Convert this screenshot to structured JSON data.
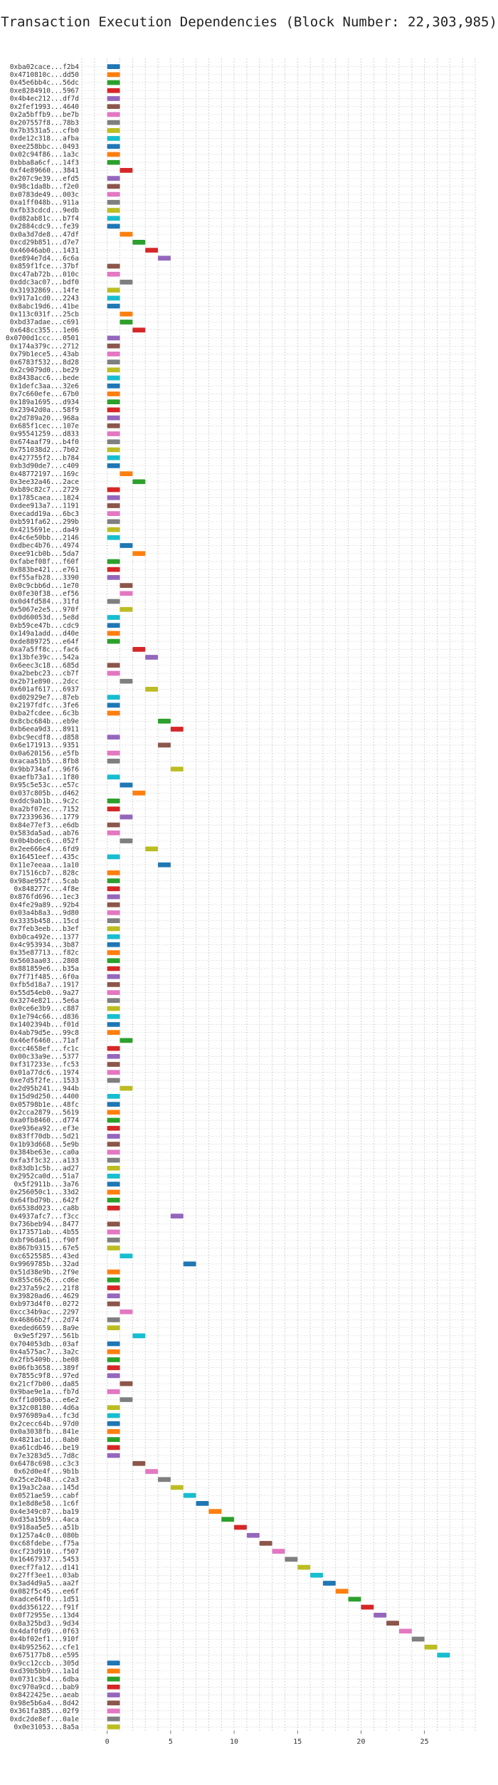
{
  "chart_data": {
    "type": "bar",
    "title": "Transaction Execution Dependencies (Block Number: 22,303,985)",
    "xlabel": "",
    "ylabel": "",
    "xlim": [
      -2,
      29
    ],
    "x_ticks": [
      0,
      5,
      10,
      15,
      20,
      25
    ],
    "grid": true,
    "legend": "none",
    "palette": [
      "#1f77b4",
      "#ff7f0e",
      "#2ca02c",
      "#d62728",
      "#9467bd",
      "#8c564b",
      "#e377c2",
      "#7f7f7f",
      "#bcbd22",
      "#17becf"
    ],
    "transactions": [
      {
        "label": "0xba02cace...f2b4",
        "start": 0
      },
      {
        "label": "0x4710810c...dd50",
        "start": 0
      },
      {
        "label": "0x45e6bb4c...56dc",
        "start": 0
      },
      {
        "label": "0xe8284910...5967",
        "start": 0
      },
      {
        "label": "0x4b4ec212...df7d",
        "start": 0
      },
      {
        "label": "0x2fef1993...4640",
        "start": 0
      },
      {
        "label": "0x2a5bffb9...be7b",
        "start": 0
      },
      {
        "label": "0x207557f8...78b3",
        "start": 0
      },
      {
        "label": "0x7b3531a5...cfb0",
        "start": 0
      },
      {
        "label": "0xde12c318...afba",
        "start": 0
      },
      {
        "label": "0xee258bbc...0493",
        "start": 0
      },
      {
        "label": "0x02c94f86...1a3c",
        "start": 0
      },
      {
        "label": "0xbba8a6cf...14f3",
        "start": 0
      },
      {
        "label": "0xf4e89660...3841",
        "start": 1
      },
      {
        "label": "0x207c9e39...efd5",
        "start": 0
      },
      {
        "label": "0x98c1da8b...f2e0",
        "start": 0
      },
      {
        "label": "0x0783de49...003c",
        "start": 0
      },
      {
        "label": "0xa1ff048b...911a",
        "start": 0
      },
      {
        "label": "0xfb33cdcd...9edb",
        "start": 0
      },
      {
        "label": "0xd82ab81c...b7f4",
        "start": 0
      },
      {
        "label": "0x2884cdc9...fe39",
        "start": 0
      },
      {
        "label": "0x0a3d7de8...47df",
        "start": 1
      },
      {
        "label": "0xcd29b851...d7e7",
        "start": 2
      },
      {
        "label": "0x46046ab0...1431",
        "start": 3
      },
      {
        "label": "0xe894e7d4...6c6a",
        "start": 4
      },
      {
        "label": "0x859f1fce...37bf",
        "start": 0
      },
      {
        "label": "0xc47ab72b...010c",
        "start": 0
      },
      {
        "label": "0xddc3ac07...bdf0",
        "start": 1
      },
      {
        "label": "0x31932869...14fe",
        "start": 0
      },
      {
        "label": "0x917a1cd0...2243",
        "start": 0
      },
      {
        "label": "0x8abc19d6...41be",
        "start": 0
      },
      {
        "label": "0x113c031f...25cb",
        "start": 1
      },
      {
        "label": "0xbd37adae...c691",
        "start": 1
      },
      {
        "label": "0x648cc355...1e06",
        "start": 2
      },
      {
        "label": "0x0700d1ccc...0501",
        "start": 0
      },
      {
        "label": "0x174a379c...2712",
        "start": 0
      },
      {
        "label": "0x79b1ece5...43ab",
        "start": 0
      },
      {
        "label": "0x6783f532...8d28",
        "start": 0
      },
      {
        "label": "0x2c9079d0...be29",
        "start": 0
      },
      {
        "label": "0x8438acc6...bede",
        "start": 0
      },
      {
        "label": "0x1defc3aa...32e6",
        "start": 0
      },
      {
        "label": "0x7c660efe...67b0",
        "start": 0
      },
      {
        "label": "0x189a1695...d934",
        "start": 0
      },
      {
        "label": "0x23942d0a...58f9",
        "start": 0
      },
      {
        "label": "0x2d789a20...968a",
        "start": 0
      },
      {
        "label": "0x685f1cec...107e",
        "start": 0
      },
      {
        "label": "0x95541259...d833",
        "start": 0
      },
      {
        "label": "0x674aaf79...b4f0",
        "start": 0
      },
      {
        "label": "0x751038d2...7b02",
        "start": 0
      },
      {
        "label": "0x427755f2...b784",
        "start": 0
      },
      {
        "label": "0xb3d90de7...c409",
        "start": 0
      },
      {
        "label": "0x48772197...169c",
        "start": 1
      },
      {
        "label": "0x3ee32a46...2ace",
        "start": 2
      },
      {
        "label": "0xb89c82c7...2729",
        "start": 0
      },
      {
        "label": "0x1785caea...1824",
        "start": 0
      },
      {
        "label": "0xdee913a7...1191",
        "start": 0
      },
      {
        "label": "0xecadd19a...6bc3",
        "start": 0
      },
      {
        "label": "0xb591fa62...299b",
        "start": 0
      },
      {
        "label": "0x4215691e...da49",
        "start": 0
      },
      {
        "label": "0x4c6e50bb...2146",
        "start": 0
      },
      {
        "label": "0xdbec4b76...4974",
        "start": 1
      },
      {
        "label": "0xee91cb0b...5da7",
        "start": 2
      },
      {
        "label": "0xfabef08f...f60f",
        "start": 0
      },
      {
        "label": "0x883be421...e761",
        "start": 0
      },
      {
        "label": "0xf55afb28...3390",
        "start": 0
      },
      {
        "label": "0x0c9cbb6d...1e70",
        "start": 1
      },
      {
        "label": "0x0fe30f38...ef56",
        "start": 1
      },
      {
        "label": "0x0d4fd584...31fd",
        "start": 0
      },
      {
        "label": "0x5067e2e5...970f",
        "start": 1
      },
      {
        "label": "0x0d60053d...5e8d",
        "start": 0
      },
      {
        "label": "0xb59ce47b...cdc9",
        "start": 0
      },
      {
        "label": "0x149a1add...d40e",
        "start": 0
      },
      {
        "label": "0xde889725...e64f",
        "start": 0
      },
      {
        "label": "0xa7a5ff8c...fac6",
        "start": 2
      },
      {
        "label": "0x13bfe39c...542a",
        "start": 3
      },
      {
        "label": "0x6eec3c18...685d",
        "start": 0
      },
      {
        "label": "0xa2bebc23...cb7f",
        "start": 0
      },
      {
        "label": "0x2b71e890...2dcc",
        "start": 1
      },
      {
        "label": "0x601af617...6937",
        "start": 3
      },
      {
        "label": "0xd02929e7...87eb",
        "start": 0
      },
      {
        "label": "0x2197fdfc...3fe6",
        "start": 0
      },
      {
        "label": "0xba2fcdee...6c3b",
        "start": 0
      },
      {
        "label": "0x8cbc684b...eb9e",
        "start": 4
      },
      {
        "label": "0xb6eea9d3...8911",
        "start": 5
      },
      {
        "label": "0xbc9ecdf8...d858",
        "start": 0
      },
      {
        "label": "0x6e171913...9351",
        "start": 4
      },
      {
        "label": "0x0a620156...e5fb",
        "start": 0
      },
      {
        "label": "0xacaa51b5...8fb8",
        "start": 0
      },
      {
        "label": "0x9bb734af...96f6",
        "start": 5
      },
      {
        "label": "0xaefb73a1...1f80",
        "start": 0
      },
      {
        "label": "0x95c5e53c...e57c",
        "start": 1
      },
      {
        "label": "0x037c805b...d462",
        "start": 2
      },
      {
        "label": "0xddc9ab1b...9c2c",
        "start": 0
      },
      {
        "label": "0xa2bf07ec...7152",
        "start": 0
      },
      {
        "label": "0x72339636...1779",
        "start": 1
      },
      {
        "label": "0x84e77ef3...e6db",
        "start": 0
      },
      {
        "label": "0x583da5ad...ab76",
        "start": 0
      },
      {
        "label": "0x0b4bdec6...052f",
        "start": 1
      },
      {
        "label": "0x2ee666e4...6fd9",
        "start": 3
      },
      {
        "label": "0x16451eef...435c",
        "start": 0
      },
      {
        "label": "0x11e7eeaa...1a10",
        "start": 4
      },
      {
        "label": "0x71516cb7...828c",
        "start": 0
      },
      {
        "label": "0x98ae952f...5cab",
        "start": 0
      },
      {
        "label": "0x848277c...4f8e",
        "start": 0
      },
      {
        "label": "0x876fd696...1ec3",
        "start": 0
      },
      {
        "label": "0x4fe29a89...92b4",
        "start": 0
      },
      {
        "label": "0x03a4b8a3...9d80",
        "start": 0
      },
      {
        "label": "0x3335b458...15cd",
        "start": 0
      },
      {
        "label": "0x7feb3eeb...b3ef",
        "start": 0
      },
      {
        "label": "0xb0ca492e...1377",
        "start": 0
      },
      {
        "label": "0x4c953934...3b87",
        "start": 0
      },
      {
        "label": "0x35e87713...f82c",
        "start": 0
      },
      {
        "label": "0x5603aa03...2808",
        "start": 0
      },
      {
        "label": "0x881859e6...b35a",
        "start": 0
      },
      {
        "label": "0x7f71f485...6f0a",
        "start": 0
      },
      {
        "label": "0xfb5d18a7...1917",
        "start": 0
      },
      {
        "label": "0x55d54eb0...9a27",
        "start": 0
      },
      {
        "label": "0x3274e821...5e6a",
        "start": 0
      },
      {
        "label": "0x0ce6e3b9...c887",
        "start": 0
      },
      {
        "label": "0x1e794c66...d836",
        "start": 0
      },
      {
        "label": "0x1402394b...f01d",
        "start": 0
      },
      {
        "label": "0x4ab79d5e...99c8",
        "start": 0
      },
      {
        "label": "0x46ef6460...71af",
        "start": 1
      },
      {
        "label": "0xcc4658ef...fc1c",
        "start": 0
      },
      {
        "label": "0x00c33a9e...5377",
        "start": 0
      },
      {
        "label": "0xf317233e...fc53",
        "start": 0
      },
      {
        "label": "0x01a77dc6...1974",
        "start": 0
      },
      {
        "label": "0xe7d5f2fe...1533",
        "start": 0
      },
      {
        "label": "0x2d95b241...944b",
        "start": 1
      },
      {
        "label": "0x15d9d250...4400",
        "start": 0
      },
      {
        "label": "0x05798b1e...48fc",
        "start": 0
      },
      {
        "label": "0x2cca2879...5619",
        "start": 0
      },
      {
        "label": "0xa0fb8460...d774",
        "start": 0
      },
      {
        "label": "0xe936ea92...ef3e",
        "start": 0
      },
      {
        "label": "0x83ff70db...5d21",
        "start": 0
      },
      {
        "label": "0x1b93d668...5e9b",
        "start": 0
      },
      {
        "label": "0x384be63e...ca0a",
        "start": 0
      },
      {
        "label": "0xfa3f3c32...a133",
        "start": 0
      },
      {
        "label": "0x83db1c5b...ad27",
        "start": 0
      },
      {
        "label": "0x2952ca0d...51a7",
        "start": 0
      },
      {
        "label": "0x5f2911b...3a76",
        "start": 0
      },
      {
        "label": "0x256050c1...33d2",
        "start": 0
      },
      {
        "label": "0x64fbd79b...642f",
        "start": 0
      },
      {
        "label": "0x6538d023...ca8b",
        "start": 0
      },
      {
        "label": "0x4937afc7...f3cc",
        "start": 5
      },
      {
        "label": "0x736beb94...8477",
        "start": 0
      },
      {
        "label": "0x173571ab...4b55",
        "start": 0
      },
      {
        "label": "0xbf96da61...f90f",
        "start": 0
      },
      {
        "label": "0x867b9315...67e5",
        "start": 0
      },
      {
        "label": "0xc6525585...43ed",
        "start": 1
      },
      {
        "label": "0x9969785b...32ad",
        "start": 6
      },
      {
        "label": "0x51d38e9b...2f9e",
        "start": 0
      },
      {
        "label": "0x855c6626...cd6e",
        "start": 0
      },
      {
        "label": "0x237a59c2...21f8",
        "start": 0
      },
      {
        "label": "0x39820ad6...4629",
        "start": 0
      },
      {
        "label": "0xb973d4f0...0272",
        "start": 0
      },
      {
        "label": "0xcc34b9ac...2297",
        "start": 1
      },
      {
        "label": "0x46866b2f...2d74",
        "start": 0
      },
      {
        "label": "0xeded6659...8a9e",
        "start": 0
      },
      {
        "label": "0x9e5f297...561b",
        "start": 2
      },
      {
        "label": "0x704053db...03af",
        "start": 0
      },
      {
        "label": "0x4a575ac7...3a2c",
        "start": 0
      },
      {
        "label": "0x2fb5409b...be08",
        "start": 0
      },
      {
        "label": "0x06fb3658...389f",
        "start": 0
      },
      {
        "label": "0x7855c9f8...97ed",
        "start": 0
      },
      {
        "label": "0x21cf7b00...da85",
        "start": 1
      },
      {
        "label": "0x9bae9e1a...fb7d",
        "start": 0
      },
      {
        "label": "0xff1d005a...e6e2",
        "start": 1
      },
      {
        "label": "0x32c08180...4d6a",
        "start": 0
      },
      {
        "label": "0x976989a4...fc3d",
        "start": 0
      },
      {
        "label": "0x2cecc64b...97d0",
        "start": 0
      },
      {
        "label": "0x0a3038fb...841e",
        "start": 0
      },
      {
        "label": "0x4821ac1d...0ab0",
        "start": 0
      },
      {
        "label": "0xa61cdb46...be19",
        "start": 0
      },
      {
        "label": "0x7e3283d5...7d8c",
        "start": 0
      },
      {
        "label": "0x6478c698...c3c3",
        "start": 2
      },
      {
        "label": "0x62d0e4f...9b1b",
        "start": 3
      },
      {
        "label": "0x25ce2b48...c2a3",
        "start": 4
      },
      {
        "label": "0x19a3c2aa...145d",
        "start": 5
      },
      {
        "label": "0x0521ae59...cabf",
        "start": 6
      },
      {
        "label": "0x1e8d8e58...1c6f",
        "start": 7
      },
      {
        "label": "0x4e349c07...ba19",
        "start": 8
      },
      {
        "label": "0xd35a15b9...4aca",
        "start": 9
      },
      {
        "label": "0x918aa5e5...a51b",
        "start": 10
      },
      {
        "label": "0x1257a4c0...080b",
        "start": 11
      },
      {
        "label": "0xc68fdebe...f75a",
        "start": 12
      },
      {
        "label": "0xcf23d910...f507",
        "start": 13
      },
      {
        "label": "0x16467937...5453",
        "start": 14
      },
      {
        "label": "0xecf7fa12...d141",
        "start": 15
      },
      {
        "label": "0x27ff3ee1...03ab",
        "start": 16
      },
      {
        "label": "0x3ad4d9a5...aa2f",
        "start": 17
      },
      {
        "label": "0x082f5c45...ee6f",
        "start": 18
      },
      {
        "label": "0xadce64f0...1d51",
        "start": 19
      },
      {
        "label": "0xdd356122...f91f",
        "start": 20
      },
      {
        "label": "0x0f72955e...13d4",
        "start": 21
      },
      {
        "label": "0x8a325bd3...9d34",
        "start": 22
      },
      {
        "label": "0x4daf0fd9...0f63",
        "start": 23
      },
      {
        "label": "0x4bf02ef1...910f",
        "start": 24
      },
      {
        "label": "0x4b952562...cfe1",
        "start": 25
      },
      {
        "label": "0x675177b8...e595",
        "start": 26
      },
      {
        "label": "0x9cc12ccb...305d",
        "start": 0
      },
      {
        "label": "0xd39b5bb9...1a1d",
        "start": 0
      },
      {
        "label": "0x0731c3b4...6dba",
        "start": 0
      },
      {
        "label": "0xc970a9cd...bab9",
        "start": 0
      },
      {
        "label": "0x8422425e...aeab",
        "start": 0
      },
      {
        "label": "0x98e5b6a4...8d42",
        "start": 0
      },
      {
        "label": "0x361fa385...02f9",
        "start": 0
      },
      {
        "label": "0xdc2de8ef...0a1e",
        "start": 0
      },
      {
        "label": "0x0e31053...8a5a",
        "start": 0
      }
    ]
  }
}
